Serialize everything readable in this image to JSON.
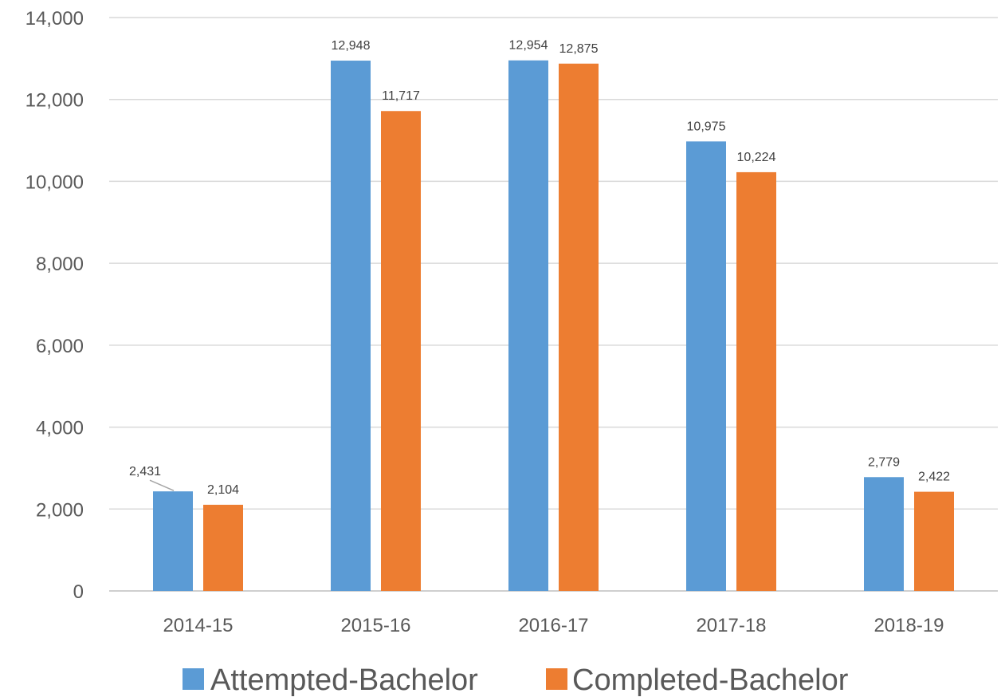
{
  "chart_data": {
    "type": "bar",
    "categories": [
      "2014-15",
      "2015-16",
      "2016-17",
      "2017-18",
      "2018-19"
    ],
    "series": [
      {
        "name": "Attempted-Bachelor",
        "color": "#5b9bd5",
        "values": [
          2431,
          12948,
          12954,
          10975,
          2779
        ],
        "labels": [
          "2,431",
          "12,948",
          "12,954",
          "10,975",
          "2,779"
        ]
      },
      {
        "name": "Completed-Bachelor",
        "color": "#ed7d31",
        "values": [
          2104,
          11717,
          12875,
          10224,
          2422
        ],
        "labels": [
          "2,104",
          "11,717",
          "12,875",
          "10,224",
          "2,422"
        ]
      }
    ],
    "y_ticks": [
      "0",
      "2,000",
      "4,000",
      "6,000",
      "8,000",
      "10,000",
      "12,000",
      "14,000"
    ],
    "ylim": [
      0,
      14000
    ],
    "grid": true,
    "legend": "bottom"
  }
}
